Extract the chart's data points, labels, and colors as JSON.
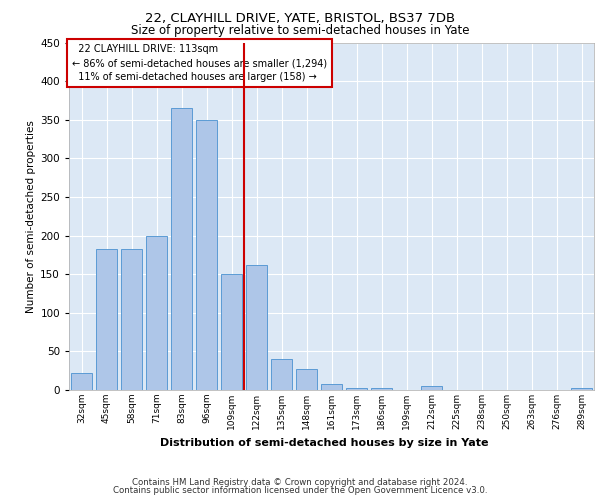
{
  "title": "22, CLAYHILL DRIVE, YATE, BRISTOL, BS37 7DB",
  "subtitle": "Size of property relative to semi-detached houses in Yate",
  "xlabel": "Distribution of semi-detached houses by size in Yate",
  "ylabel": "Number of semi-detached properties",
  "property_label": "22 CLAYHILL DRIVE: 113sqm",
  "smaller_pct": 86,
  "smaller_count": 1294,
  "larger_pct": 11,
  "larger_count": 158,
  "bin_labels": [
    "32sqm",
    "45sqm",
    "58sqm",
    "71sqm",
    "83sqm",
    "96sqm",
    "109sqm",
    "122sqm",
    "135sqm",
    "148sqm",
    "161sqm",
    "173sqm",
    "186sqm",
    "199sqm",
    "212sqm",
    "225sqm",
    "238sqm",
    "250sqm",
    "263sqm",
    "276sqm",
    "289sqm"
  ],
  "bin_values": [
    22,
    183,
    183,
    200,
    365,
    350,
    150,
    162,
    40,
    27,
    8,
    3,
    3,
    0,
    5,
    0,
    0,
    0,
    0,
    0,
    3
  ],
  "bar_color": "#aec6e8",
  "bar_edge_color": "#5b9bd5",
  "vline_x": 6.5,
  "vline_color": "#cc0000",
  "annotation_box_color": "#cc0000",
  "background_color": "#dce8f5",
  "grid_color": "#ffffff",
  "ylim": [
    0,
    450
  ],
  "yticks": [
    0,
    50,
    100,
    150,
    200,
    250,
    300,
    350,
    400,
    450
  ],
  "footer_line1": "Contains HM Land Registry data © Crown copyright and database right 2024.",
  "footer_line2": "Contains public sector information licensed under the Open Government Licence v3.0."
}
